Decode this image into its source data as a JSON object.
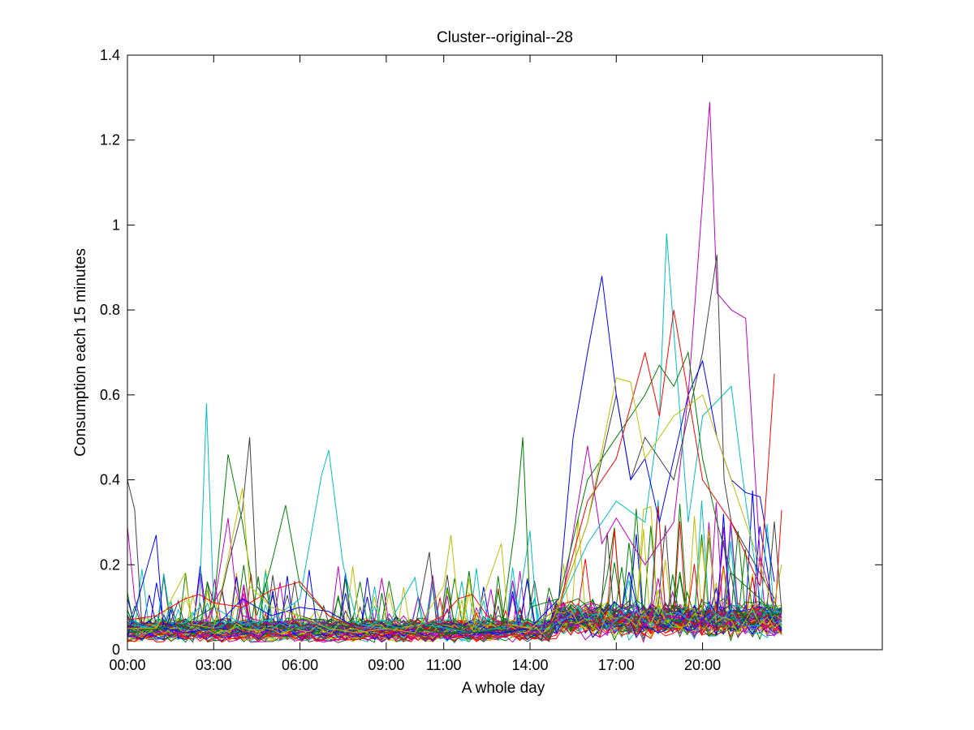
{
  "chart_data": {
    "type": "line",
    "title": "Cluster--original--28",
    "xlabel": "A whole day",
    "ylabel": "Consumption each 15 minutes",
    "x_unit": "time of day (hours)",
    "xlim": [
      0,
      26.25
    ],
    "ylim": [
      0,
      1.4
    ],
    "x_ticks": [
      {
        "value": 0,
        "label": "00:00"
      },
      {
        "value": 3,
        "label": "03:00"
      },
      {
        "value": 6,
        "label": "06:00"
      },
      {
        "value": 9,
        "label": "09:00"
      },
      {
        "value": 11,
        "label": "11:00"
      },
      {
        "value": 14,
        "label": "14:00"
      },
      {
        "value": 17,
        "label": "17:00"
      },
      {
        "value": 20,
        "label": "20:00"
      }
    ],
    "y_ticks": [
      {
        "value": 0,
        "label": "0"
      },
      {
        "value": 0.2,
        "label": "0.2"
      },
      {
        "value": 0.4,
        "label": "0.4"
      },
      {
        "value": 0.6,
        "label": "0.6"
      },
      {
        "value": 0.8,
        "label": "0.8"
      },
      {
        "value": 1,
        "label": "1"
      },
      {
        "value": 1.2,
        "label": "1.2"
      },
      {
        "value": 1.4,
        "label": "1.4"
      }
    ],
    "grid": false,
    "legend": "none",
    "series_colors": [
      "#0000ff",
      "#008000",
      "#ff0000",
      "#00bfbf",
      "#bf00bf",
      "#bfbf00",
      "#404040"
    ],
    "series": [
      {
        "color": "#bf00bf",
        "points": [
          [
            0,
            0.29
          ],
          [
            0.25,
            0.12
          ],
          [
            0.5,
            0.06
          ],
          [
            1,
            0.05
          ],
          [
            2,
            0.06
          ],
          [
            2.75,
            0.07
          ],
          [
            3,
            0.1
          ],
          [
            3.5,
            0.31
          ],
          [
            3.75,
            0.15
          ],
          [
            4,
            0.08
          ],
          [
            5,
            0.06
          ],
          [
            6,
            0.07
          ],
          [
            8,
            0.05
          ],
          [
            10,
            0.04
          ],
          [
            12,
            0.04
          ],
          [
            14,
            0.05
          ],
          [
            15,
            0.07
          ],
          [
            16,
            0.48
          ],
          [
            16.5,
            0.25
          ],
          [
            17,
            0.31
          ],
          [
            18,
            0.2
          ],
          [
            19,
            0.3
          ],
          [
            19.5,
            0.6
          ],
          [
            20.25,
            1.29
          ],
          [
            20.5,
            0.84
          ],
          [
            21,
            0.8
          ],
          [
            21.5,
            0.78
          ],
          [
            22,
            0.22
          ],
          [
            22.5,
            0.1
          ]
        ]
      },
      {
        "color": "#00bfbf",
        "points": [
          [
            0,
            0.06
          ],
          [
            1,
            0.05
          ],
          [
            2,
            0.06
          ],
          [
            2.5,
            0.1
          ],
          [
            2.75,
            0.58
          ],
          [
            3,
            0.1
          ],
          [
            4,
            0.06
          ],
          [
            5,
            0.07
          ],
          [
            6,
            0.12
          ],
          [
            6.75,
            0.41
          ],
          [
            7,
            0.47
          ],
          [
            7.5,
            0.2
          ],
          [
            8,
            0.06
          ],
          [
            9,
            0.05
          ],
          [
            10,
            0.17
          ],
          [
            10.25,
            0.06
          ],
          [
            12,
            0.04
          ],
          [
            13.5,
            0.06
          ],
          [
            14,
            0.28
          ],
          [
            14.25,
            0.06
          ],
          [
            15,
            0.1
          ],
          [
            16,
            0.25
          ],
          [
            17,
            0.35
          ],
          [
            18,
            0.3
          ],
          [
            18.5,
            0.55
          ],
          [
            18.75,
            0.98
          ],
          [
            19,
            0.75
          ],
          [
            19.5,
            0.3
          ],
          [
            20,
            0.55
          ],
          [
            21,
            0.62
          ],
          [
            21.5,
            0.35
          ],
          [
            22,
            0.12
          ],
          [
            22.5,
            0.08
          ]
        ]
      },
      {
        "color": "#404040",
        "points": [
          [
            0,
            0.4
          ],
          [
            0.25,
            0.33
          ],
          [
            0.5,
            0.06
          ],
          [
            1,
            0.05
          ],
          [
            2,
            0.06
          ],
          [
            3,
            0.05
          ],
          [
            3.5,
            0.2
          ],
          [
            4,
            0.33
          ],
          [
            4.25,
            0.5
          ],
          [
            4.5,
            0.15
          ],
          [
            5,
            0.1
          ],
          [
            6,
            0.08
          ],
          [
            7,
            0.06
          ],
          [
            8,
            0.05
          ],
          [
            9,
            0.04
          ],
          [
            10,
            0.05
          ],
          [
            10.5,
            0.23
          ],
          [
            10.75,
            0.06
          ],
          [
            12,
            0.04
          ],
          [
            14,
            0.05
          ],
          [
            15,
            0.1
          ],
          [
            16,
            0.3
          ],
          [
            17,
            0.6
          ],
          [
            17.5,
            0.4
          ],
          [
            18,
            0.5
          ],
          [
            19,
            0.4
          ],
          [
            20,
            0.7
          ],
          [
            20.5,
            0.93
          ],
          [
            20.75,
            0.4
          ],
          [
            21,
            0.3
          ],
          [
            22,
            0.18
          ],
          [
            22.5,
            0.12
          ]
        ]
      },
      {
        "color": "#0000ff",
        "points": [
          [
            0,
            0.03
          ],
          [
            1,
            0.27
          ],
          [
            1.25,
            0.05
          ],
          [
            2,
            0.04
          ],
          [
            3,
            0.05
          ],
          [
            4,
            0.12
          ],
          [
            5,
            0.08
          ],
          [
            6,
            0.1
          ],
          [
            7,
            0.09
          ],
          [
            8,
            0.05
          ],
          [
            9,
            0.04
          ],
          [
            10,
            0.05
          ],
          [
            11,
            0.04
          ],
          [
            12,
            0.04
          ],
          [
            13,
            0.04
          ],
          [
            14,
            0.05
          ],
          [
            15,
            0.12
          ],
          [
            15.5,
            0.5
          ],
          [
            16,
            0.7
          ],
          [
            16.25,
            0.79
          ],
          [
            16.5,
            0.88
          ],
          [
            17,
            0.6
          ],
          [
            17.5,
            0.4
          ],
          [
            18,
            0.45
          ],
          [
            18.5,
            0.3
          ],
          [
            19,
            0.45
          ],
          [
            19.5,
            0.6
          ],
          [
            20,
            0.68
          ],
          [
            20.5,
            0.5
          ],
          [
            21,
            0.4
          ],
          [
            21.5,
            0.37
          ],
          [
            22,
            0.36
          ],
          [
            22.5,
            0.16
          ]
        ]
      },
      {
        "color": "#008000",
        "points": [
          [
            0,
            0.04
          ],
          [
            1,
            0.05
          ],
          [
            2,
            0.06
          ],
          [
            3,
            0.1
          ],
          [
            3.5,
            0.46
          ],
          [
            4,
            0.3
          ],
          [
            4.5,
            0.08
          ],
          [
            5,
            0.2
          ],
          [
            5.5,
            0.34
          ],
          [
            6,
            0.15
          ],
          [
            7,
            0.08
          ],
          [
            8,
            0.05
          ],
          [
            9,
            0.04
          ],
          [
            10,
            0.05
          ],
          [
            11,
            0.04
          ],
          [
            12,
            0.04
          ],
          [
            13,
            0.05
          ],
          [
            13.5,
            0.3
          ],
          [
            13.75,
            0.5
          ],
          [
            14,
            0.1
          ],
          [
            15,
            0.12
          ],
          [
            16,
            0.4
          ],
          [
            17,
            0.5
          ],
          [
            18,
            0.6
          ],
          [
            18.5,
            0.67
          ],
          [
            19,
            0.62
          ],
          [
            19.5,
            0.7
          ],
          [
            20,
            0.45
          ],
          [
            20.5,
            0.3
          ],
          [
            21,
            0.18
          ],
          [
            22,
            0.12
          ],
          [
            22.5,
            0.08
          ]
        ]
      },
      {
        "color": "#ff0000",
        "points": [
          [
            0,
            0.07
          ],
          [
            1,
            0.08
          ],
          [
            2,
            0.12
          ],
          [
            2.5,
            0.13
          ],
          [
            3,
            0.11
          ],
          [
            4,
            0.1
          ],
          [
            5,
            0.14
          ],
          [
            6,
            0.16
          ],
          [
            7,
            0.08
          ],
          [
            8,
            0.05
          ],
          [
            9,
            0.04
          ],
          [
            10,
            0.05
          ],
          [
            11,
            0.08
          ],
          [
            11.5,
            0.12
          ],
          [
            12,
            0.13
          ],
          [
            12.5,
            0.08
          ],
          [
            13,
            0.06
          ],
          [
            14,
            0.05
          ],
          [
            15,
            0.1
          ],
          [
            16,
            0.35
          ],
          [
            17,
            0.45
          ],
          [
            18,
            0.7
          ],
          [
            18.5,
            0.55
          ],
          [
            19,
            0.8
          ],
          [
            19.5,
            0.6
          ],
          [
            20,
            0.4
          ],
          [
            21,
            0.3
          ],
          [
            22,
            0.15
          ],
          [
            22.5,
            0.65
          ]
        ]
      },
      {
        "color": "#bfbf00",
        "points": [
          [
            0,
            0.05
          ],
          [
            1,
            0.05
          ],
          [
            2,
            0.18
          ],
          [
            2.25,
            0.06
          ],
          [
            3,
            0.05
          ],
          [
            4,
            0.38
          ],
          [
            4.25,
            0.15
          ],
          [
            5,
            0.1
          ],
          [
            6,
            0.08
          ],
          [
            7,
            0.05
          ],
          [
            8,
            0.04
          ],
          [
            9,
            0.05
          ],
          [
            10,
            0.04
          ],
          [
            11,
            0.15
          ],
          [
            11.25,
            0.27
          ],
          [
            11.5,
            0.1
          ],
          [
            12,
            0.05
          ],
          [
            13,
            0.25
          ],
          [
            13.25,
            0.06
          ],
          [
            14,
            0.05
          ],
          [
            15,
            0.1
          ],
          [
            16,
            0.3
          ],
          [
            17,
            0.64
          ],
          [
            17.5,
            0.63
          ],
          [
            18,
            0.45
          ],
          [
            19,
            0.55
          ],
          [
            20,
            0.6
          ],
          [
            21,
            0.4
          ],
          [
            22,
            0.2
          ],
          [
            22.5,
            0.09
          ]
        ]
      }
    ]
  }
}
